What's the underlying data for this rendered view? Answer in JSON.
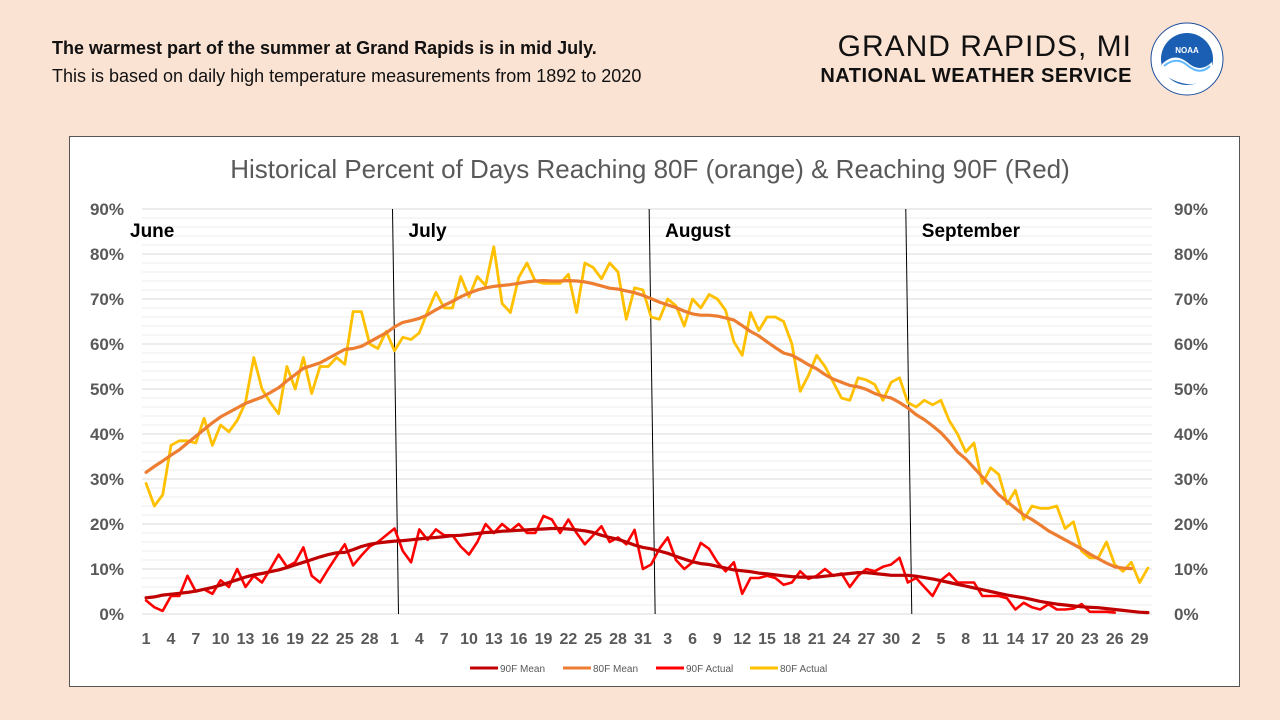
{
  "header": {
    "headline": "The warmest part of the summer at Grand Rapids is in mid July.",
    "subline": "This is based on daily high temperature measurements from 1892 to 2020",
    "office_city": "GRAND RAPIDS, MI",
    "office_org": "NATIONAL WEATHER SERVICE",
    "logo_text": "NOAA"
  },
  "colors": {
    "page_bg": "#fbe3d4",
    "mean90": "#c00000",
    "mean80": "#ed7d31",
    "actual90": "#ff0000",
    "actual80": "#ffc000"
  },
  "chart_data": {
    "type": "line",
    "title": "Historical Percent of Days Reaching 80F (orange) & Reaching 90F (Red)",
    "ylim": [
      0,
      90
    ],
    "y_ticks": [
      "0%",
      "10%",
      "20%",
      "30%",
      "40%",
      "50%",
      "60%",
      "70%",
      "80%",
      "90%"
    ],
    "grid": true,
    "legend_position": "bottom",
    "secondary_y_axis": true,
    "months": [
      "June",
      "July",
      "August",
      "September"
    ],
    "month_start_day": [
      1,
      31,
      62,
      93
    ],
    "x_day_count": 122,
    "x_tick_labels": [
      {
        "day": 1,
        "label": "1"
      },
      {
        "day": 4,
        "label": "4"
      },
      {
        "day": 7,
        "label": "7"
      },
      {
        "day": 10,
        "label": "10"
      },
      {
        "day": 13,
        "label": "13"
      },
      {
        "day": 16,
        "label": "16"
      },
      {
        "day": 19,
        "label": "19"
      },
      {
        "day": 22,
        "label": "22"
      },
      {
        "day": 25,
        "label": "25"
      },
      {
        "day": 28,
        "label": "28"
      },
      {
        "day": 31,
        "label": "1"
      },
      {
        "day": 34,
        "label": "4"
      },
      {
        "day": 37,
        "label": "7"
      },
      {
        "day": 40,
        "label": "10"
      },
      {
        "day": 43,
        "label": "13"
      },
      {
        "day": 46,
        "label": "16"
      },
      {
        "day": 49,
        "label": "19"
      },
      {
        "day": 52,
        "label": "22"
      },
      {
        "day": 55,
        "label": "25"
      },
      {
        "day": 58,
        "label": "28"
      },
      {
        "day": 61,
        "label": "31"
      },
      {
        "day": 64,
        "label": "3"
      },
      {
        "day": 67,
        "label": "6"
      },
      {
        "day": 70,
        "label": "9"
      },
      {
        "day": 73,
        "label": "12"
      },
      {
        "day": 76,
        "label": "15"
      },
      {
        "day": 79,
        "label": "18"
      },
      {
        "day": 82,
        "label": "21"
      },
      {
        "day": 85,
        "label": "24"
      },
      {
        "day": 88,
        "label": "27"
      },
      {
        "day": 91,
        "label": "30"
      },
      {
        "day": 94,
        "label": "2"
      },
      {
        "day": 97,
        "label": "5"
      },
      {
        "day": 100,
        "label": "8"
      },
      {
        "day": 103,
        "label": "11"
      },
      {
        "day": 106,
        "label": "14"
      },
      {
        "day": 109,
        "label": "17"
      },
      {
        "day": 112,
        "label": "20"
      },
      {
        "day": 115,
        "label": "23"
      },
      {
        "day": 118,
        "label": "26"
      },
      {
        "day": 121,
        "label": "29"
      }
    ],
    "series": [
      {
        "name": "90F Mean",
        "color": "#c00000",
        "values": [
          3.6,
          3.8,
          4.2,
          4.4,
          4.6,
          4.8,
          5.1,
          5.5,
          5.9,
          6.4,
          7,
          7.6,
          8.2,
          8.7,
          9,
          9.4,
          9.8,
          10.3,
          10.9,
          11.5,
          12.1,
          12.7,
          13.2,
          13.6,
          13.7,
          14.3,
          15,
          15.5,
          15.8,
          16,
          16.2,
          16.3,
          16.5,
          16.7,
          16.9,
          17,
          17.2,
          17.4,
          17.5,
          17.7,
          17.9,
          18.1,
          18.2,
          18.4,
          18.5,
          18.6,
          18.7,
          18.8,
          18.9,
          19,
          19,
          18.9,
          18.7,
          18.5,
          18.1,
          17.5,
          17,
          16.6,
          16,
          15.3,
          14.8,
          14.5,
          14,
          13.5,
          12.8,
          12.2,
          11.6,
          11.2,
          11,
          10.6,
          10.2,
          9.8,
          9.6,
          9.4,
          9.1,
          8.9,
          8.7,
          8.5,
          8.3,
          8.2,
          8.2,
          8.2,
          8.4,
          8.6,
          8.8,
          9,
          9.2,
          9.2,
          9,
          8.8,
          8.6,
          8.6,
          8.6,
          8.4,
          8.1,
          7.8,
          7.4,
          7,
          6.6,
          6.2,
          5.8,
          5.4,
          5,
          4.6,
          4.2,
          3.9,
          3.6,
          3.2,
          2.8,
          2.5,
          2.2,
          2,
          1.8,
          1.6,
          1.5,
          1.4,
          1.2,
          1,
          0.8,
          0.6,
          0.4,
          0.3
        ]
      },
      {
        "name": "80F Mean",
        "color": "#ed7d31",
        "values": [
          31.5,
          32.8,
          34,
          35.3,
          36.5,
          38,
          39.5,
          41,
          42.5,
          43.8,
          44.8,
          45.8,
          46.8,
          47.5,
          48.2,
          49.2,
          50.3,
          51.8,
          53.2,
          54.6,
          55.2,
          55.8,
          56.8,
          57.8,
          58.8,
          59,
          59.5,
          60.5,
          61.5,
          62.5,
          63.8,
          64.8,
          65.2,
          65.7,
          66.5,
          67.6,
          68.6,
          69.5,
          70.5,
          71.3,
          72,
          72.5,
          72.8,
          73,
          73.2,
          73.5,
          73.8,
          74,
          74.1,
          74,
          74,
          74.1,
          74,
          73.8,
          73.4,
          72.9,
          72.4,
          72.2,
          71.8,
          71.4,
          70.8,
          70.1,
          69.3,
          68.7,
          68.1,
          67.3,
          66.7,
          66.4,
          66.4,
          66.2,
          65.8,
          65.3,
          64.1,
          62.8,
          61.8,
          60.5,
          59.2,
          58,
          57.5,
          56.5,
          55.4,
          54.5,
          53.2,
          52.2,
          51.5,
          50.8,
          50.5,
          49.9,
          49,
          48.4,
          48,
          47,
          45.8,
          44.3,
          43.2,
          41.8,
          40.3,
          38.3,
          36,
          34.5,
          32.5,
          30.5,
          28.5,
          26.5,
          25,
          23.5,
          22,
          21,
          19.8,
          18.5,
          17.5,
          16.5,
          15.5,
          14.5,
          13.3,
          12.3,
          11.3,
          10.5,
          10.2,
          10.1
        ]
      },
      {
        "name": "90F Actual",
        "color": "#ff0000",
        "values": [
          3,
          1.5,
          0.7,
          4,
          4,
          8.5,
          5,
          5.5,
          4.5,
          7.5,
          6,
          10,
          6,
          8.5,
          7,
          10,
          13.2,
          10.5,
          11.5,
          14.8,
          8.5,
          7,
          10,
          12.8,
          15.5,
          10.8,
          13,
          15,
          16,
          17.5,
          19,
          14,
          11.5,
          18.8,
          16.5,
          18.8,
          17.5,
          17.5,
          15,
          13.2,
          16,
          20,
          18,
          20,
          18.5,
          20,
          18,
          18,
          21.8,
          21,
          18,
          21,
          18,
          15.5,
          17.5,
          19.5,
          16,
          17,
          15.5,
          18.7,
          10,
          11,
          14.5,
          17,
          12,
          10,
          11.5,
          15.8,
          14.5,
          11.5,
          9.5,
          11.5,
          4.5,
          8,
          8,
          8.5,
          8,
          6.5,
          7,
          9.5,
          7.8,
          8.5,
          10,
          8.5,
          9,
          6,
          8.5,
          10,
          9.5,
          10.5,
          11,
          12.5,
          7,
          8,
          6,
          4,
          7.5,
          9,
          7,
          7,
          7,
          4,
          4,
          4,
          3.5,
          1,
          2.5,
          1.5,
          1,
          2.2,
          1,
          1,
          1.2,
          2.2,
          0.5,
          0.5,
          0.5,
          0.3
        ]
      },
      {
        "name": "80F Actual",
        "color": "#ffc000",
        "values": [
          29,
          24,
          26.5,
          37.5,
          38.5,
          38.5,
          38,
          43.5,
          37.5,
          42,
          40.5,
          43,
          47,
          57,
          50,
          47,
          44.5,
          55,
          50,
          57,
          49,
          55,
          55,
          57,
          55.5,
          67.2,
          67.2,
          60,
          59,
          62.8,
          58.5,
          61.5,
          61,
          62.5,
          67.2,
          71.5,
          68,
          68,
          75,
          70.5,
          75,
          73,
          81.6,
          69,
          67,
          74.8,
          78,
          74,
          73.5,
          73.5,
          73.5,
          75.5,
          67,
          78,
          77,
          74.5,
          78,
          76,
          65.5,
          72.5,
          72,
          66,
          65.5,
          70,
          68.5,
          64,
          70,
          68,
          71,
          70,
          67.5,
          60.5,
          57.5,
          67,
          63,
          66,
          66,
          65,
          60,
          49.5,
          53,
          57.5,
          55,
          51.5,
          48,
          47.5,
          52.5,
          52,
          51,
          47.5,
          51.5,
          52.5,
          47,
          46,
          47.5,
          46.5,
          47.5,
          43,
          40,
          36,
          38,
          29,
          32.5,
          31,
          24.5,
          27.5,
          21,
          24,
          23.5,
          23.5,
          24,
          19,
          20.5,
          14,
          12.5,
          12.5,
          16,
          11,
          9.5,
          11.5,
          7,
          10.2
        ]
      }
    ]
  }
}
